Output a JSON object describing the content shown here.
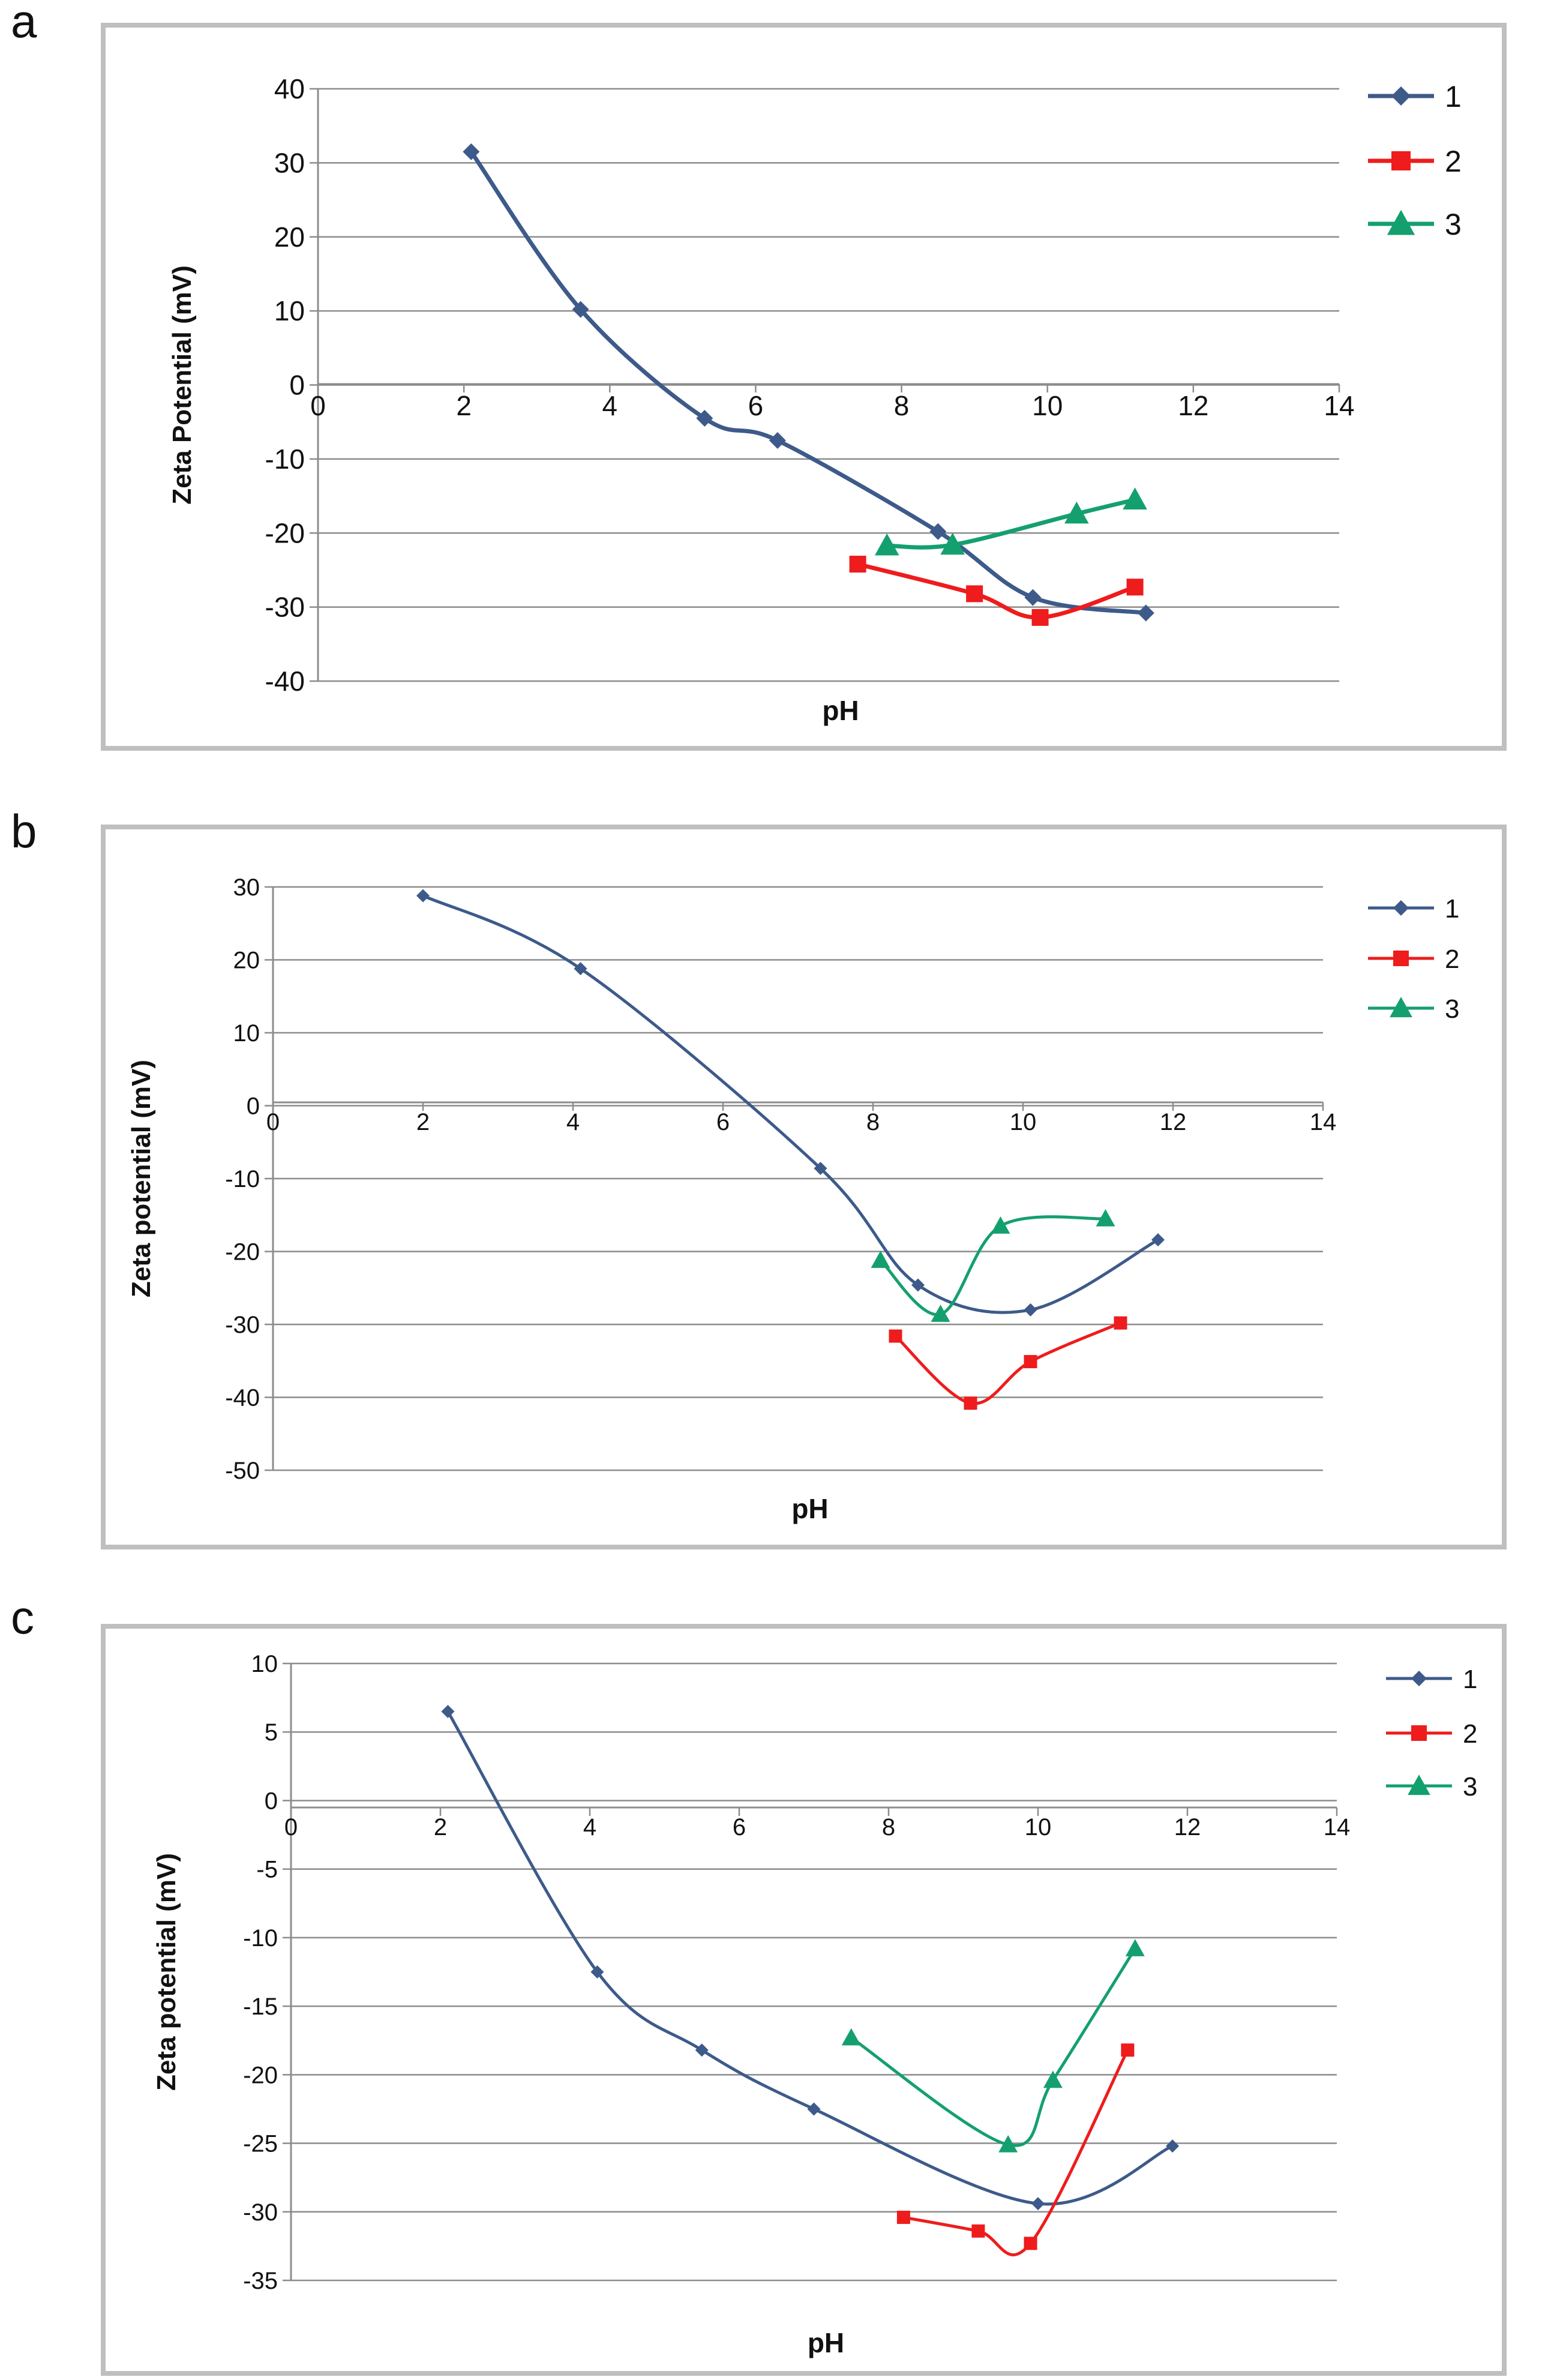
{
  "chart_data": [
    {
      "type": "line",
      "panel_label": "a",
      "xlabel": "pH",
      "ylabel": "Zeta Potential (mV)",
      "xlim": [
        0,
        14
      ],
      "ylim": [
        -40,
        40
      ],
      "x_ticks": [
        "0",
        "2",
        "4",
        "6",
        "8",
        "10",
        "12",
        "14"
      ],
      "y_ticks": [
        "40",
        "30",
        "20",
        "10",
        "0",
        "-10",
        "-20",
        "-30",
        "-40"
      ],
      "legend": [
        "1",
        "2",
        "3"
      ],
      "series": [
        {
          "name": "1",
          "color": "#3d5a8a",
          "marker": "diamond",
          "x": [
            2.1,
            3.6,
            5.3,
            6.3,
            8.5,
            9.8,
            11.35
          ],
          "y": [
            31.5,
            10.2,
            -4.5,
            -7.5,
            -19.8,
            -28.7,
            -30.8
          ]
        },
        {
          "name": "2",
          "color": "#ee1c1c",
          "marker": "square",
          "x": [
            7.4,
            9.0,
            9.9,
            11.2
          ],
          "y": [
            -24.2,
            -28.2,
            -31.4,
            -27.3
          ]
        },
        {
          "name": "3",
          "color": "#14a06e",
          "marker": "triangle",
          "x": [
            7.8,
            8.7,
            10.4,
            11.2
          ],
          "y": [
            -21.7,
            -21.6,
            -17.4,
            -15.5
          ]
        }
      ]
    },
    {
      "type": "line",
      "panel_label": "b",
      "xlabel": "pH",
      "ylabel": "Zeta potential (mV)",
      "xlim": [
        0,
        14
      ],
      "ylim": [
        -50,
        30
      ],
      "x_ticks": [
        "0",
        "2",
        "4",
        "6",
        "8",
        "10",
        "12",
        "14"
      ],
      "y_ticks": [
        "30",
        "20",
        "10",
        "0",
        "-10",
        "-20",
        "-30",
        "-40",
        "-50"
      ],
      "legend": [
        "1",
        "2",
        "3"
      ],
      "series": [
        {
          "name": "1",
          "color": "#3d5a8a",
          "marker": "diamond",
          "x": [
            2.0,
            4.1,
            7.3,
            8.6,
            10.1,
            11.8
          ],
          "y": [
            28.8,
            18.8,
            -8.6,
            -24.6,
            -28.0,
            -18.4
          ]
        },
        {
          "name": "2",
          "color": "#ee1c1c",
          "marker": "square",
          "x": [
            8.3,
            9.3,
            10.1,
            11.3
          ],
          "y": [
            -31.6,
            -40.8,
            -35.1,
            -29.8
          ]
        },
        {
          "name": "3",
          "color": "#14a06e",
          "marker": "triangle",
          "x": [
            8.1,
            8.9,
            9.7,
            11.1
          ],
          "y": [
            -21.2,
            -28.6,
            -16.5,
            -15.5
          ]
        }
      ]
    },
    {
      "type": "line",
      "panel_label": "c",
      "xlabel": "pH",
      "ylabel": "Zeta potential (mV)",
      "xlim": [
        0,
        14
      ],
      "ylim": [
        -35,
        10
      ],
      "x_ticks": [
        "0",
        "2",
        "4",
        "6",
        "8",
        "10",
        "12",
        "14"
      ],
      "y_ticks": [
        "10",
        "5",
        "0",
        "-5",
        "-10",
        "-15",
        "-20",
        "-25",
        "-30",
        "-35"
      ],
      "legend": [
        "1",
        "2",
        "3"
      ],
      "series": [
        {
          "name": "1",
          "color": "#3d5a8a",
          "marker": "diamond",
          "x": [
            2.1,
            4.1,
            5.5,
            7.0,
            10.0,
            11.8
          ],
          "y": [
            6.5,
            -12.5,
            -18.2,
            -22.5,
            -29.4,
            -25.2
          ]
        },
        {
          "name": "2",
          "color": "#ee1c1c",
          "marker": "square",
          "x": [
            8.2,
            9.2,
            9.9,
            11.2
          ],
          "y": [
            -30.4,
            -31.4,
            -32.3,
            -18.2
          ]
        },
        {
          "name": "3",
          "color": "#14a06e",
          "marker": "triangle",
          "x": [
            7.5,
            9.6,
            10.2,
            11.3
          ],
          "y": [
            -17.3,
            -25.1,
            -20.4,
            -10.8
          ]
        }
      ]
    }
  ]
}
